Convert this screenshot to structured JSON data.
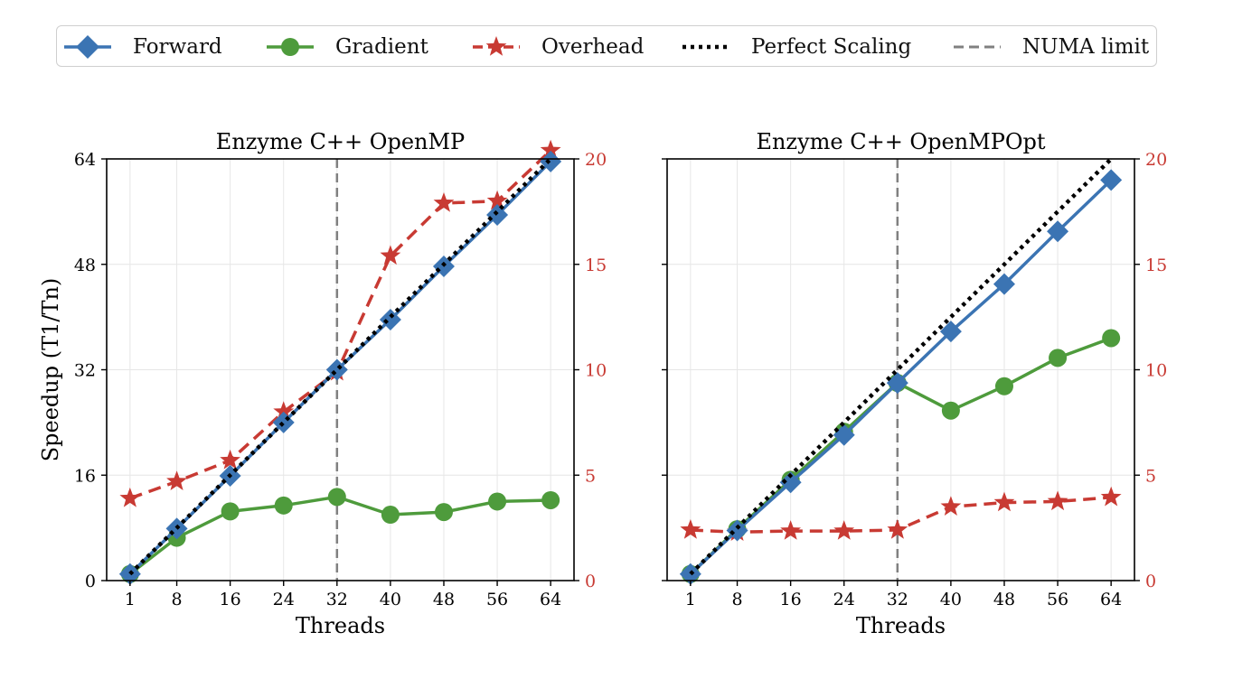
{
  "legend": {
    "items": [
      {
        "label": "Forward",
        "color": "#3b74b3",
        "marker": "diamond",
        "line": "solid"
      },
      {
        "label": "Gradient",
        "color": "#4e9b3c",
        "marker": "circle",
        "line": "solid"
      },
      {
        "label": "Overhead",
        "color": "#c83a33",
        "marker": "star",
        "line": "dashed"
      },
      {
        "label": "Perfect Scaling",
        "color": "#000000",
        "marker": "none",
        "line": "dotted"
      },
      {
        "label": "NUMA limit",
        "color": "#808080",
        "marker": "none",
        "line": "dashed"
      }
    ]
  },
  "chart_data": [
    {
      "type": "line",
      "title": "Enzyme C++ OpenMP",
      "xlabel": "Threads",
      "ylabel": "Speedup (T1/Tn)",
      "x": [
        1,
        8,
        16,
        24,
        32,
        40,
        48,
        56,
        64
      ],
      "xticks": [
        "1",
        "8",
        "16",
        "24",
        "32",
        "40",
        "48",
        "56",
        "64"
      ],
      "xlim": [
        -2.5,
        67.5
      ],
      "ylim": [
        0,
        64
      ],
      "yticks": [
        0,
        16,
        32,
        48,
        64
      ],
      "y2lim": [
        0,
        20
      ],
      "y2ticks": [
        0,
        5,
        10,
        15,
        20
      ],
      "y2_color": "#c83a33",
      "grid": true,
      "numa_limit_x": 32,
      "series": [
        {
          "name": "Forward",
          "axis": "left",
          "values": [
            1,
            7.9,
            15.9,
            24,
            32,
            39.6,
            47.7,
            55.5,
            63.6
          ]
        },
        {
          "name": "Gradient",
          "axis": "left",
          "values": [
            1,
            6.5,
            10.5,
            11.4,
            12.7,
            10,
            10.4,
            12,
            12.2
          ]
        },
        {
          "name": "Overhead",
          "axis": "right",
          "values": [
            3.9,
            4.7,
            5.7,
            8,
            9.9,
            15.4,
            17.9,
            18,
            20.4
          ]
        },
        {
          "name": "Perfect Scaling",
          "axis": "left",
          "values": [
            1,
            8,
            16,
            24,
            32,
            40,
            48,
            56,
            64
          ]
        }
      ]
    },
    {
      "type": "line",
      "title": "Enzyme C++ OpenMPOpt",
      "xlabel": "Threads",
      "ylabel": "",
      "x": [
        1,
        8,
        16,
        24,
        32,
        40,
        48,
        56,
        64
      ],
      "xticks": [
        "1",
        "8",
        "16",
        "24",
        "32",
        "40",
        "48",
        "56",
        "64"
      ],
      "xlim": [
        -2.5,
        67.5
      ],
      "ylim": [
        0,
        64
      ],
      "yticks": [
        0,
        16,
        32,
        48,
        64
      ],
      "y2lim": [
        0,
        20
      ],
      "y2ticks": [
        0,
        5,
        10,
        15,
        20
      ],
      "y2_color": "#c83a33",
      "grid": true,
      "numa_limit_x": 32,
      "series": [
        {
          "name": "Forward",
          "axis": "left",
          "values": [
            1,
            7.6,
            14.9,
            22.1,
            30,
            37.8,
            45,
            53,
            60.8
          ]
        },
        {
          "name": "Gradient",
          "axis": "left",
          "values": [
            1,
            7.8,
            15.3,
            22.6,
            30,
            25.8,
            29.5,
            33.8,
            36.8
          ]
        },
        {
          "name": "Overhead",
          "axis": "right",
          "values": [
            2.4,
            2.3,
            2.35,
            2.35,
            2.4,
            3.5,
            3.7,
            3.75,
            3.95
          ]
        },
        {
          "name": "Perfect Scaling",
          "axis": "left",
          "values": [
            1,
            8,
            16,
            24,
            32,
            40,
            48,
            56,
            64
          ]
        }
      ]
    }
  ]
}
